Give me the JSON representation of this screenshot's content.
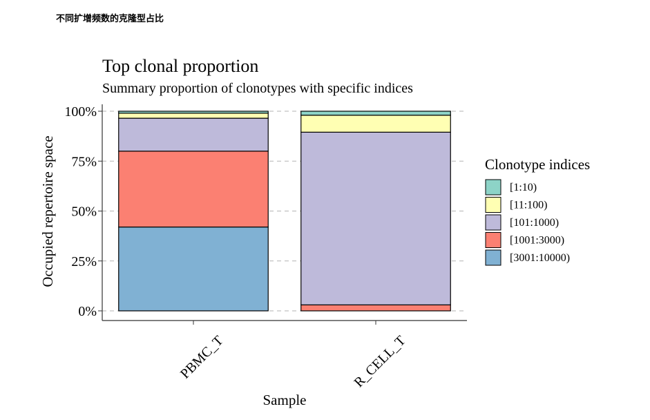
{
  "page": {
    "caption": "不同扩增频数的克隆型占比"
  },
  "chart_data": {
    "type": "bar",
    "stacked": true,
    "title": "Top clonal proportion",
    "subtitle": "Summary proportion of clonotypes with specific indices",
    "xlabel": "Sample",
    "ylabel": "Occupied repertoire space",
    "categories": [
      "PBMC_T",
      "R_CELL_T"
    ],
    "ylim": [
      0,
      1
    ],
    "yticks": [
      0,
      0.25,
      0.5,
      0.75,
      1.0
    ],
    "ytick_labels": [
      "0%",
      "25%",
      "50%",
      "75%",
      "100%"
    ],
    "grid": "horizontal-dashed",
    "legend_title": "Clonotype indices",
    "legend_position": "right",
    "series": [
      {
        "name": "[3001:10000)",
        "color": "#80B1D3",
        "values": [
          0.42,
          0.0
        ]
      },
      {
        "name": "[1001:3000)",
        "color": "#FB8072",
        "values": [
          0.38,
          0.03
        ]
      },
      {
        "name": "[101:1000)",
        "color": "#BEBADA",
        "values": [
          0.165,
          0.865
        ]
      },
      {
        "name": "[11:100)",
        "color": "#FFFFB3",
        "values": [
          0.025,
          0.085
        ]
      },
      {
        "name": "[1:10)",
        "color": "#8DD3C7",
        "values": [
          0.01,
          0.02
        ]
      }
    ]
  }
}
